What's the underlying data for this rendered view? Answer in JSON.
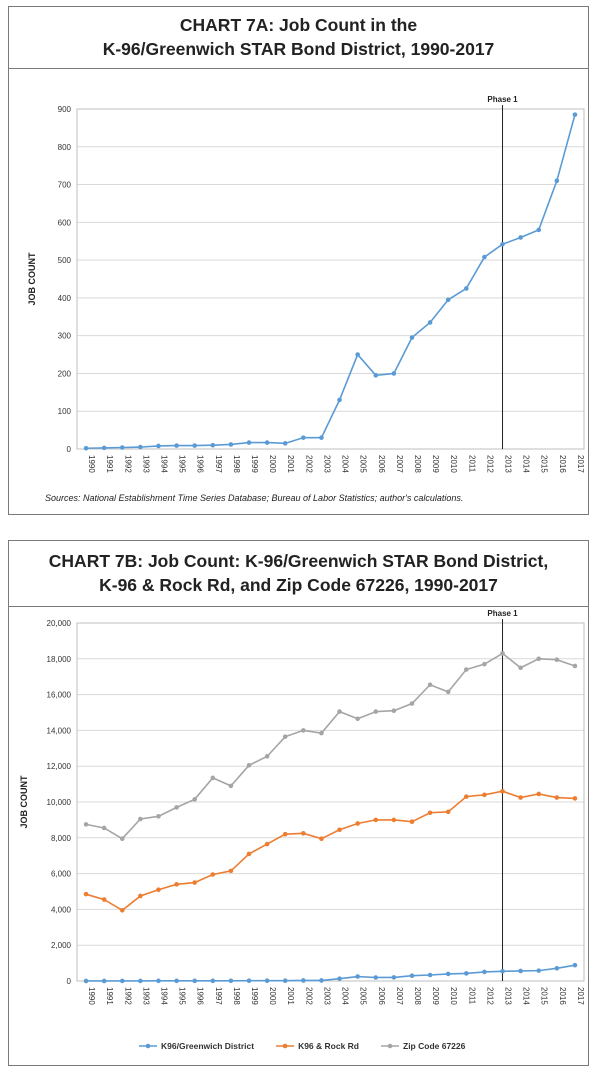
{
  "chart_a": {
    "title_line1": "CHART 7A: Job Count in the",
    "title_line2": "K-96/Greenwich STAR Bond District, 1990-2017",
    "ylabel": "JOB COUNT",
    "source": "Sources: National Establishment Time Series Database; Bureau of Labor Statistics; author's calculations.",
    "marker_label": "Phase 1",
    "marker_year": "2013",
    "color": "#5b9bd5"
  },
  "chart_b": {
    "title_line1": "CHART 7B: Job Count: K-96/Greenwich STAR Bond District,",
    "title_line2": "K-96 & Rock Rd, and Zip Code 67226, 1990-2017",
    "ylabel": "JOB COUNT",
    "marker_label": "Phase 1",
    "marker_year": "2013"
  },
  "chart_data": [
    {
      "type": "line",
      "title": "CHART 7A: Job Count in the K-96/Greenwich STAR Bond District, 1990-2017",
      "ylabel": "JOB COUNT",
      "xlabel": "",
      "ylim": [
        0,
        900
      ],
      "yticks": [
        0,
        100,
        200,
        300,
        400,
        500,
        600,
        700,
        800,
        900
      ],
      "ytick_labels": [
        "0",
        "100",
        "200",
        "300",
        "400",
        "500",
        "600",
        "700",
        "800",
        "900"
      ],
      "grid": "horizontal",
      "x": [
        "1990",
        "1991",
        "1992",
        "1993",
        "1994",
        "1995",
        "1996",
        "1997",
        "1998",
        "1999",
        "2000",
        "2001",
        "2002",
        "2003",
        "2004",
        "2005",
        "2006",
        "2007",
        "2008",
        "2009",
        "2010",
        "2011",
        "2012",
        "2013",
        "2014",
        "2015",
        "2016",
        "2017"
      ],
      "series": [
        {
          "name": "",
          "color": "#5b9bd5",
          "values": [
            2,
            3,
            4,
            5,
            8,
            9,
            9,
            10,
            12,
            17,
            17,
            15,
            30,
            30,
            130,
            250,
            195,
            200,
            295,
            335,
            395,
            425,
            508,
            542,
            560,
            580,
            710,
            885
          ]
        }
      ]
    },
    {
      "type": "line",
      "title": "CHART 7B: Job Count: K-96/Greenwich STAR Bond District, K-96 & Rock Rd, and Zip Code 67226, 1990-2017",
      "ylabel": "JOB COUNT",
      "xlabel": "",
      "ylim": [
        0,
        20000
      ],
      "yticks": [
        0,
        2000,
        4000,
        6000,
        8000,
        10000,
        12000,
        14000,
        16000,
        18000,
        20000
      ],
      "ytick_labels": [
        "0",
        "2,000",
        "4,000",
        "6,000",
        "8,000",
        "10,000",
        "12,000",
        "14,000",
        "16,000",
        "18,000",
        "20,000"
      ],
      "grid": "horizontal",
      "legend": "bottom",
      "x": [
        "1990",
        "1991",
        "1992",
        "1993",
        "1994",
        "1995",
        "1996",
        "1997",
        "1998",
        "1999",
        "2000",
        "2001",
        "2002",
        "2003",
        "2004",
        "2005",
        "2006",
        "2007",
        "2008",
        "2009",
        "2010",
        "2011",
        "2012",
        "2013",
        "2014",
        "2015",
        "2016",
        "2017"
      ],
      "series": [
        {
          "name": "K96/Greenwich District",
          "color": "#5b9bd5",
          "values": [
            2,
            3,
            4,
            5,
            8,
            9,
            9,
            10,
            12,
            17,
            17,
            15,
            30,
            30,
            130,
            250,
            195,
            200,
            295,
            335,
            395,
            425,
            508,
            542,
            560,
            580,
            710,
            885
          ]
        },
        {
          "name": "K96 & Rock Rd",
          "color": "#ed7d31",
          "values": [
            4850,
            4550,
            3950,
            4750,
            5100,
            5400,
            5500,
            5950,
            6150,
            7100,
            7650,
            8200,
            8250,
            7950,
            8450,
            8800,
            9000,
            9000,
            8900,
            9400,
            9450,
            10300,
            10400,
            10600,
            10250,
            10450,
            10250,
            10200
          ]
        },
        {
          "name": "Zip Code 67226",
          "color": "#a5a5a5",
          "values": [
            8750,
            8550,
            7950,
            9050,
            9200,
            9700,
            10150,
            11350,
            10900,
            12050,
            12550,
            13650,
            14000,
            13850,
            15050,
            14650,
            15050,
            15100,
            15500,
            16550,
            16150,
            17400,
            17700,
            18300,
            17500,
            18000,
            17950,
            17600
          ]
        }
      ]
    }
  ]
}
